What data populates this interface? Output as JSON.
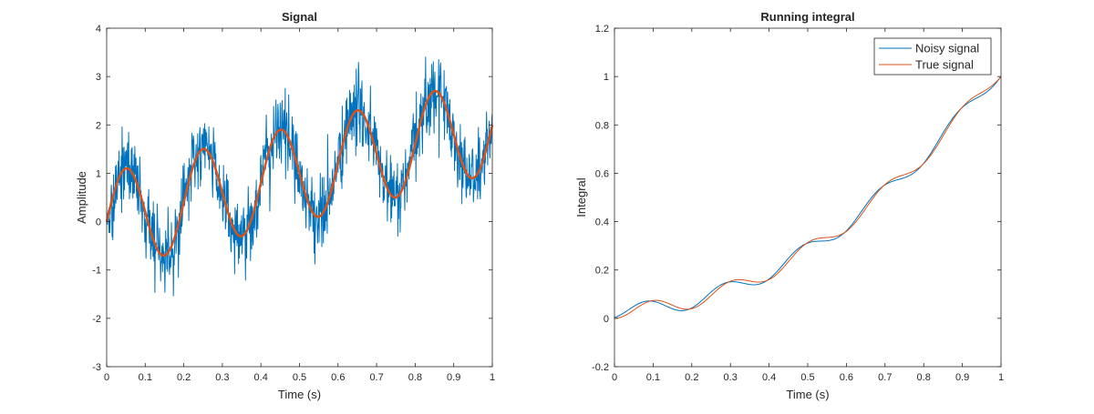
{
  "chart_data": [
    {
      "type": "line",
      "title": "Signal",
      "xlabel": "Time (s)",
      "ylabel": "Amplitude",
      "xlim": [
        0,
        1
      ],
      "ylim": [
        -3,
        4
      ],
      "xticks": [
        "0",
        "0.1",
        "0.2",
        "0.3",
        "0.4",
        "0.5",
        "0.6",
        "0.7",
        "0.8",
        "0.9",
        "1"
      ],
      "yticks": [
        "-3",
        "-2",
        "-1",
        "0",
        "1",
        "2",
        "3",
        "4"
      ],
      "grid": false,
      "legend": null,
      "x_step": 0.001,
      "series": [
        {
          "role": "noisy",
          "color": "#0072BD",
          "line_width": 1,
          "model": "sin(2*pi*5*t) + 2*t + gaussian noise (sd about 0.4)",
          "noise_sd": 0.4
        },
        {
          "role": "true",
          "color": "#D95319",
          "line_width": 2.5,
          "model": "sin(2*pi*5*t) + 2*t",
          "x": [
            0,
            0.05,
            0.15,
            0.25,
            0.35,
            0.45,
            0.55,
            0.65,
            0.75,
            0.85,
            0.95,
            1.0
          ],
          "values": [
            0,
            1.1,
            -0.7,
            1.5,
            -0.3,
            1.9,
            0.1,
            2.3,
            0.5,
            2.7,
            0.9,
            2.0
          ]
        }
      ]
    },
    {
      "type": "line",
      "title": "Running integral",
      "xlabel": "Time (s)",
      "ylabel": "Integral",
      "xlim": [
        0,
        1
      ],
      "ylim": [
        -0.2,
        1.2
      ],
      "xticks": [
        "0",
        "0.1",
        "0.2",
        "0.3",
        "0.4",
        "0.5",
        "0.6",
        "0.7",
        "0.8",
        "0.9",
        "1"
      ],
      "yticks": [
        "-0.2",
        "0",
        "0.2",
        "0.4",
        "0.6",
        "0.8",
        "1",
        "1.2"
      ],
      "grid": false,
      "legend": "top-right",
      "x_step": 0.005,
      "series": [
        {
          "name": "Noisy signal",
          "color": "#0072BD",
          "line_width": 1,
          "model": "running integral of the noisy signal (close to the true integral)",
          "x": [
            0,
            0.1,
            0.2,
            0.3,
            0.4,
            0.5,
            0.6,
            0.7,
            0.8,
            0.9,
            1.0
          ],
          "values": [
            0,
            0.08,
            0.04,
            0.17,
            0.16,
            0.33,
            0.36,
            0.57,
            0.63,
            0.9,
            1.0
          ]
        },
        {
          "name": "True signal",
          "color": "#D95319",
          "line_width": 1,
          "model": "t^2 + (1 - cos(2*pi*5*t)) / (10*pi)",
          "x": [
            0,
            0.1,
            0.2,
            0.3,
            0.4,
            0.5,
            0.6,
            0.7,
            0.8,
            0.9,
            1.0
          ],
          "values": [
            0,
            0.074,
            0.04,
            0.154,
            0.16,
            0.314,
            0.36,
            0.554,
            0.64,
            0.874,
            1.0
          ]
        }
      ]
    }
  ]
}
